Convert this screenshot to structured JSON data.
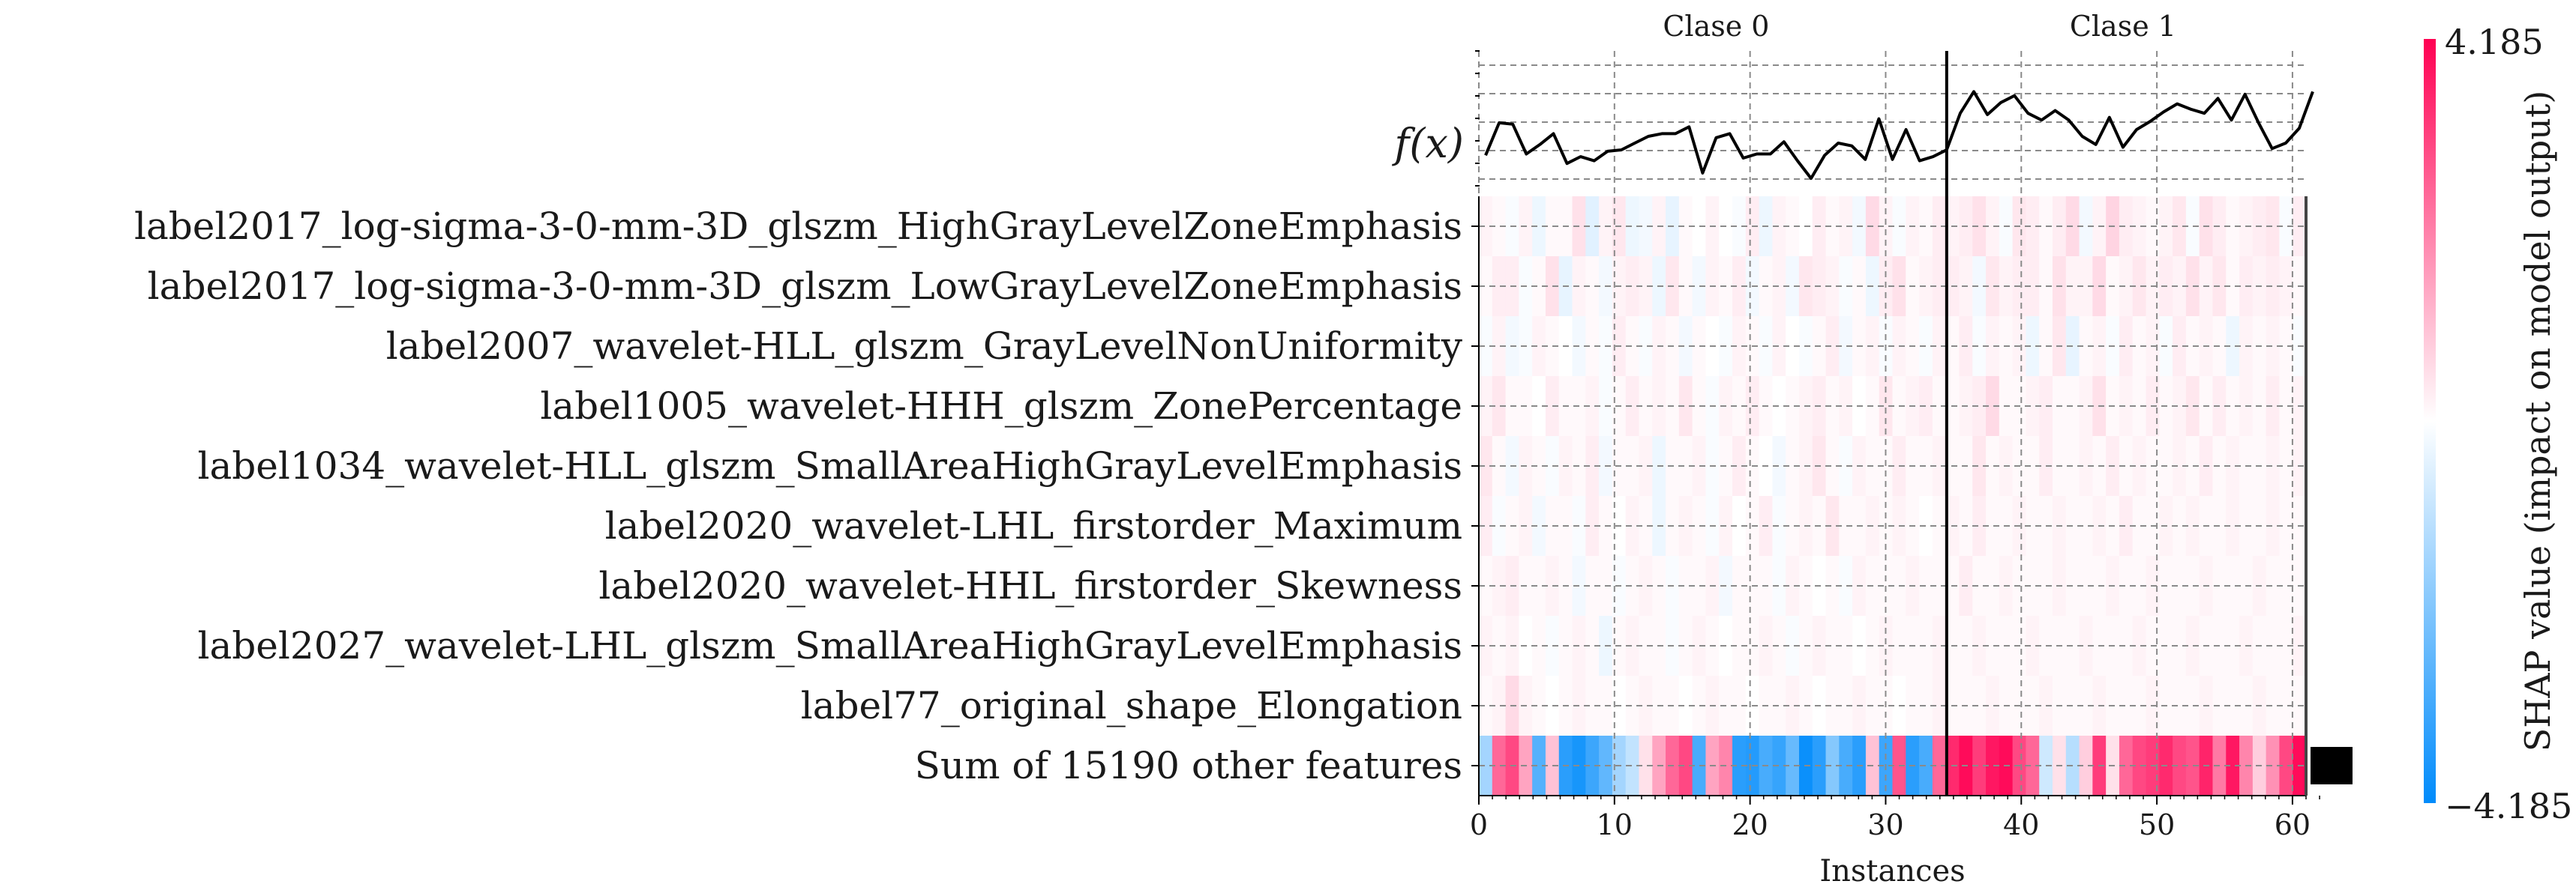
{
  "chart_data": {
    "type": "heatmap",
    "title": "",
    "xlabel": "Instances",
    "ylabel": "",
    "fx_label": "f(x)",
    "xlim": [
      0,
      61
    ],
    "xticks": [
      0,
      10,
      20,
      30,
      40,
      50,
      60
    ],
    "class_split": 34.5,
    "class_labels": [
      {
        "label": "Clase 0",
        "x": 17.5
      },
      {
        "label": "Clase 1",
        "x": 47.5
      }
    ],
    "colorbar": {
      "label": "SHAP value (impact on model output)",
      "min": -4.185,
      "max": 4.185,
      "min_label": "−4.185",
      "max_label": "4.185",
      "colors": [
        "#008bfb",
        "#ffffff",
        "#ff0052"
      ]
    },
    "features": [
      "label2017_log-sigma-3-0-mm-3D_glszm_HighGrayLevelZoneEmphasis",
      "label2017_log-sigma-3-0-mm-3D_glszm_LowGrayLevelZoneEmphasis",
      "label2007_wavelet-HLL_glszm_GrayLevelNonUniformity",
      "label1005_wavelet-HHH_glszm_ZonePercentage",
      "label1034_wavelet-HLL_glszm_SmallAreaHighGrayLevelEmphasis",
      "label2020_wavelet-LHL_firstorder_Maximum",
      "label2020_wavelet-HHL_firstorder_Skewness",
      "label2027_wavelet-LHL_glszm_SmallAreaHighGrayLevelEmphasis",
      "label77_original_shape_Elongation",
      "Sum of 15190 other features"
    ],
    "fx_values": [
      -0.2,
      2.2,
      2.1,
      -0.1,
      0.6,
      1.4,
      -0.8,
      -0.3,
      -0.6,
      0.1,
      0.2,
      0.7,
      1.2,
      1.4,
      1.4,
      1.9,
      -1.5,
      1.1,
      1.4,
      -0.4,
      -0.1,
      -0.1,
      0.8,
      -0.6,
      -1.9,
      -0.2,
      0.7,
      0.5,
      -0.5,
      2.5,
      -0.5,
      1.7,
      -0.6,
      -0.3,
      0.2,
      2.9,
      4.5,
      2.8,
      3.7,
      4.2,
      2.9,
      2.4,
      3.1,
      2.4,
      1.2,
      0.6,
      2.6,
      0.4,
      1.7,
      2.3,
      3.0,
      3.6,
      3.2,
      2.9,
      4.0,
      2.4,
      4.3,
      2.2,
      0.3,
      0.7,
      1.8,
      4.5
    ],
    "fx_ylim": [
      -3.0,
      7.5
    ],
    "cell_values": [
      [
        0.2,
        0.1,
        -0.1,
        0.2,
        -0.3,
        0.1,
        0.1,
        0.5,
        -0.5,
        0.2,
        0.4,
        -0.3,
        -0.2,
        0.2,
        -0.4,
        0.1,
        0.0,
        0.2,
        0.0,
        -0.1,
        0.3,
        -0.3,
        0.2,
        0.1,
        0.0,
        0.3,
        0.1,
        0.2,
        -0.2,
        0.6,
        0.2,
        -0.1,
        0.2,
        0.1,
        0.3,
        0.2,
        0.3,
        0.5,
        0.2,
        -0.1,
        0.4,
        0.3,
        0.1,
        0.3,
        0.6,
        -0.2,
        0.2,
        0.7,
        0.3,
        0.2,
        0.1,
        0.2,
        0.4,
        -0.1,
        0.5,
        0.3,
        0.1,
        0.2,
        0.3,
        0.4,
        -0.1,
        0.3
      ],
      [
        0.1,
        0.3,
        0.3,
        -0.1,
        0.1,
        0.5,
        -0.4,
        0.2,
        0.1,
        -0.2,
        0.2,
        0.3,
        0.2,
        -0.3,
        0.4,
        0.1,
        -0.2,
        0.2,
        0.1,
        0.3,
        -0.2,
        0.1,
        0.2,
        -0.2,
        0.4,
        0.3,
        0.2,
        -0.1,
        0.1,
        -0.3,
        0.3,
        0.5,
        0.1,
        0.2,
        0.3,
        0.3,
        0.2,
        -0.2,
        0.4,
        0.2,
        0.3,
        0.3,
        0.1,
        0.5,
        0.2,
        0.2,
        0.6,
        0.1,
        0.2,
        0.4,
        0.2,
        0.3,
        0.2,
        0.5,
        0.2,
        0.4,
        0.1,
        0.3,
        0.2,
        0.3,
        0.2,
        0.1
      ],
      [
        -0.1,
        0.2,
        -0.2,
        -0.1,
        0.2,
        0.1,
        0.0,
        -0.2,
        0.1,
        -0.1,
        0.3,
        0.1,
        -0.1,
        0.2,
        0.1,
        -0.2,
        0.1,
        0.0,
        -0.1,
        0.2,
        0.1,
        -0.1,
        0.2,
        0.0,
        -0.1,
        0.1,
        0.3,
        -0.2,
        0.1,
        0.2,
        -0.1,
        0.2,
        0.1,
        -0.1,
        0.2,
        0.1,
        0.3,
        -0.1,
        0.2,
        0.1,
        0.2,
        -0.3,
        0.1,
        0.4,
        -0.4,
        0.1,
        0.2,
        -0.1,
        0.3,
        0.1,
        0.2,
        -0.1,
        0.3,
        0.1,
        0.2,
        0.1,
        -0.3,
        0.2,
        0.1,
        0.2,
        0.1,
        -0.1
      ],
      [
        0.2,
        0.4,
        0.1,
        0.1,
        0.0,
        0.3,
        0.1,
        0.1,
        0.2,
        -0.1,
        0.1,
        0.3,
        0.1,
        0.2,
        0.1,
        0.4,
        0.1,
        -0.1,
        0.2,
        0.1,
        0.3,
        0.1,
        0.0,
        0.1,
        0.2,
        0.3,
        0.1,
        0.2,
        0.0,
        0.1,
        0.4,
        0.1,
        0.2,
        0.3,
        0.1,
        0.1,
        0.2,
        0.3,
        0.6,
        0.1,
        0.1,
        0.2,
        0.3,
        0.1,
        0.1,
        0.2,
        0.5,
        0.1,
        0.2,
        0.1,
        0.3,
        0.1,
        0.2,
        0.4,
        0.1,
        0.3,
        0.1,
        0.2,
        0.1,
        0.3,
        0.1,
        0.2
      ],
      [
        0.4,
        0.1,
        -0.2,
        0.2,
        0.1,
        -0.1,
        0.2,
        0.1,
        0.3,
        -0.2,
        0.1,
        0.1,
        0.2,
        -0.3,
        0.1,
        0.1,
        0.2,
        -0.1,
        0.1,
        0.3,
        0.1,
        0.0,
        -0.2,
        0.1,
        0.2,
        0.4,
        0.1,
        -0.1,
        0.2,
        0.1,
        0.1,
        0.3,
        0.1,
        0.1,
        0.2,
        0.1,
        0.1,
        0.4,
        0.1,
        0.2,
        0.1,
        0.1,
        0.3,
        0.1,
        0.1,
        0.2,
        0.1,
        0.3,
        0.1,
        0.2,
        0.1,
        0.1,
        0.2,
        0.1,
        0.3,
        0.1,
        0.2,
        0.1,
        0.1,
        0.2,
        0.1,
        0.2
      ],
      [
        0.3,
        -0.1,
        0.1,
        0.2,
        -0.2,
        0.1,
        0.1,
        -0.1,
        0.3,
        0.1,
        0.0,
        0.2,
        0.1,
        -0.3,
        0.1,
        0.2,
        0.1,
        -0.1,
        0.2,
        0.0,
        0.1,
        0.3,
        -0.1,
        0.1,
        0.2,
        0.1,
        0.4,
        0.1,
        0.1,
        0.2,
        0.1,
        0.2,
        0.1,
        0.0,
        0.1,
        0.2,
        0.1,
        0.3,
        0.1,
        0.1,
        0.2,
        0.1,
        0.1,
        0.2,
        0.1,
        0.1,
        0.2,
        0.1,
        0.3,
        0.1,
        0.1,
        0.2,
        0.1,
        0.2,
        0.1,
        0.1,
        0.2,
        0.1,
        0.1,
        0.2,
        0.1,
        0.1
      ],
      [
        0.1,
        0.2,
        0.3,
        0.1,
        0.1,
        0.2,
        0.1,
        -0.2,
        0.1,
        0.1,
        -0.1,
        0.1,
        0.2,
        0.1,
        -0.1,
        0.1,
        0.1,
        0.2,
        -0.2,
        0.1,
        0.1,
        0.1,
        -0.1,
        0.2,
        0.1,
        0.0,
        0.1,
        -0.1,
        0.2,
        0.1,
        0.1,
        0.1,
        0.2,
        0.1,
        0.1,
        0.1,
        0.3,
        0.1,
        0.1,
        0.2,
        0.1,
        0.1,
        0.1,
        0.2,
        0.1,
        0.1,
        0.1,
        0.2,
        0.1,
        0.1,
        0.2,
        0.1,
        0.1,
        0.1,
        0.2,
        0.1,
        0.1,
        0.1,
        0.2,
        0.1,
        0.1,
        0.1
      ],
      [
        0.2,
        0.1,
        0.2,
        0.0,
        0.1,
        -0.1,
        0.1,
        0.2,
        0.1,
        -0.3,
        0.1,
        0.2,
        0.1,
        0.1,
        -0.1,
        0.1,
        0.2,
        0.1,
        0.0,
        0.1,
        0.1,
        0.2,
        0.1,
        -0.1,
        0.1,
        0.2,
        0.1,
        0.1,
        0.0,
        0.1,
        0.2,
        0.1,
        0.1,
        0.1,
        0.2,
        0.1,
        0.1,
        0.2,
        0.1,
        0.1,
        0.1,
        0.2,
        0.1,
        0.1,
        0.1,
        0.2,
        0.1,
        0.1,
        0.1,
        0.2,
        0.1,
        0.1,
        0.1,
        0.2,
        0.1,
        0.1,
        0.1,
        0.2,
        0.1,
        0.1,
        0.1,
        0.2
      ],
      [
        0.1,
        0.2,
        0.6,
        0.2,
        0.1,
        0.0,
        0.1,
        0.2,
        0.1,
        0.1,
        0.0,
        0.1,
        0.2,
        0.1,
        0.1,
        0.0,
        0.1,
        0.2,
        0.1,
        0.1,
        0.0,
        0.1,
        0.1,
        0.2,
        0.1,
        0.0,
        0.1,
        0.1,
        0.2,
        0.1,
        0.1,
        0.0,
        0.1,
        0.1,
        0.2,
        0.1,
        0.1,
        0.1,
        0.2,
        0.1,
        0.1,
        0.1,
        0.2,
        0.1,
        0.1,
        0.1,
        0.2,
        0.1,
        0.1,
        0.1,
        0.2,
        0.1,
        0.1,
        0.1,
        0.2,
        0.1,
        0.1,
        0.1,
        0.2,
        0.1,
        0.1,
        0.1
      ],
      [
        -1.5,
        2.5,
        3.0,
        1.5,
        -2.8,
        1.0,
        -3.5,
        -3.8,
        -3.2,
        -2.6,
        -1.5,
        -1.0,
        0.5,
        1.5,
        2.5,
        3.0,
        -3.0,
        1.5,
        2.0,
        -3.5,
        -3.6,
        -3.0,
        -3.3,
        -2.5,
        -4.0,
        -3.5,
        -2.0,
        -3.0,
        -3.5,
        1.0,
        -3.2,
        2.8,
        -3.5,
        -3.0,
        2.5,
        3.5,
        4.0,
        3.2,
        3.8,
        4.0,
        3.0,
        2.5,
        -0.8,
        0.5,
        -1.2,
        0.8,
        3.2,
        0.5,
        2.5,
        3.0,
        3.2,
        3.5,
        3.0,
        2.8,
        3.6,
        2.2,
        3.8,
        2.0,
        0.8,
        1.8,
        3.0,
        4.0
      ]
    ]
  }
}
